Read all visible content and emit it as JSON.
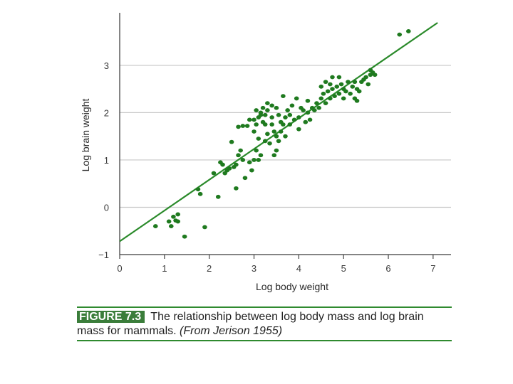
{
  "colors": {
    "points": "#1f7a1f",
    "line": "#2a8a2a",
    "gridline": "#c8c8c8",
    "axis": "#444444",
    "caption_rule": "#2f8a2f",
    "figure_label_bg": "#3a7d3a"
  },
  "chart_data": {
    "type": "scatter",
    "title": "",
    "xlabel": "Log body weight",
    "ylabel": "Log brain weight",
    "xlim": [
      0,
      7.4
    ],
    "ylim": [
      -1,
      4.05
    ],
    "x_ticks": [
      "0",
      "1",
      "2",
      "3",
      "4",
      "5",
      "6",
      "7"
    ],
    "y_ticks": [
      "−1",
      "0",
      "1",
      "2",
      "3"
    ],
    "grid": "horizontal",
    "fit_line": {
      "x": [
        0,
        7.1
      ],
      "y": [
        -0.72,
        3.9
      ]
    },
    "points": [
      [
        0.8,
        -0.4
      ],
      [
        1.1,
        -0.3
      ],
      [
        1.15,
        -0.4
      ],
      [
        1.2,
        -0.2
      ],
      [
        1.25,
        -0.28
      ],
      [
        1.3,
        -0.15
      ],
      [
        1.3,
        -0.3
      ],
      [
        1.45,
        -0.62
      ],
      [
        1.9,
        -0.42
      ],
      [
        1.75,
        0.38
      ],
      [
        1.8,
        0.28
      ],
      [
        2.2,
        0.22
      ],
      [
        2.1,
        0.72
      ],
      [
        2.25,
        0.95
      ],
      [
        2.3,
        0.9
      ],
      [
        2.35,
        0.72
      ],
      [
        2.4,
        0.78
      ],
      [
        2.45,
        0.82
      ],
      [
        2.5,
        1.38
      ],
      [
        2.55,
        0.85
      ],
      [
        2.6,
        0.4
      ],
      [
        2.6,
        0.9
      ],
      [
        2.65,
        1.1
      ],
      [
        2.65,
        1.7
      ],
      [
        2.7,
        1.2
      ],
      [
        2.75,
        1.72
      ],
      [
        2.75,
        1.0
      ],
      [
        2.8,
        0.62
      ],
      [
        2.85,
        1.72
      ],
      [
        2.9,
        1.85
      ],
      [
        2.9,
        0.95
      ],
      [
        2.95,
        0.78
      ],
      [
        3.0,
        1.6
      ],
      [
        3.0,
        1.85
      ],
      [
        3.0,
        1.0
      ],
      [
        3.05,
        1.75
      ],
      [
        3.05,
        1.2
      ],
      [
        3.05,
        2.05
      ],
      [
        3.1,
        1.9
      ],
      [
        3.1,
        1.45
      ],
      [
        3.1,
        1.0
      ],
      [
        3.15,
        1.95
      ],
      [
        3.15,
        2.0
      ],
      [
        3.15,
        1.1
      ],
      [
        3.2,
        1.8
      ],
      [
        3.2,
        2.1
      ],
      [
        3.25,
        1.75
      ],
      [
        3.25,
        1.95
      ],
      [
        3.25,
        1.4
      ],
      [
        3.3,
        2.2
      ],
      [
        3.3,
        1.55
      ],
      [
        3.3,
        2.05
      ],
      [
        3.35,
        1.35
      ],
      [
        3.4,
        1.9
      ],
      [
        3.4,
        2.15
      ],
      [
        3.4,
        1.75
      ],
      [
        3.45,
        1.6
      ],
      [
        3.45,
        1.1
      ],
      [
        3.5,
        2.1
      ],
      [
        3.5,
        1.5
      ],
      [
        3.5,
        1.2
      ],
      [
        3.55,
        1.95
      ],
      [
        3.55,
        1.4
      ],
      [
        3.6,
        1.8
      ],
      [
        3.6,
        1.6
      ],
      [
        3.65,
        1.75
      ],
      [
        3.65,
        2.35
      ],
      [
        3.7,
        1.9
      ],
      [
        3.7,
        1.5
      ],
      [
        3.75,
        2.05
      ],
      [
        3.8,
        1.95
      ],
      [
        3.8,
        1.75
      ],
      [
        3.85,
        2.15
      ],
      [
        3.9,
        1.85
      ],
      [
        3.95,
        2.3
      ],
      [
        4.0,
        1.9
      ],
      [
        4.0,
        1.65
      ],
      [
        4.05,
        2.1
      ],
      [
        4.1,
        2.05
      ],
      [
        4.15,
        1.8
      ],
      [
        4.2,
        2.25
      ],
      [
        4.2,
        2.0
      ],
      [
        4.25,
        1.85
      ],
      [
        4.3,
        2.1
      ],
      [
        4.35,
        2.05
      ],
      [
        4.4,
        2.2
      ],
      [
        4.45,
        2.1
      ],
      [
        4.5,
        2.3
      ],
      [
        4.5,
        2.55
      ],
      [
        4.55,
        2.4
      ],
      [
        4.6,
        2.2
      ],
      [
        4.6,
        2.65
      ],
      [
        4.65,
        2.45
      ],
      [
        4.7,
        2.3
      ],
      [
        4.7,
        2.6
      ],
      [
        4.75,
        2.75
      ],
      [
        4.75,
        2.5
      ],
      [
        4.8,
        2.35
      ],
      [
        4.85,
        2.55
      ],
      [
        4.9,
        2.75
      ],
      [
        4.9,
        2.4
      ],
      [
        4.95,
        2.6
      ],
      [
        5.0,
        2.3
      ],
      [
        5.0,
        2.5
      ],
      [
        5.05,
        2.45
      ],
      [
        5.1,
        2.65
      ],
      [
        5.15,
        2.4
      ],
      [
        5.2,
        2.55
      ],
      [
        5.25,
        2.3
      ],
      [
        5.3,
        2.5
      ],
      [
        5.35,
        2.45
      ],
      [
        5.4,
        2.65
      ],
      [
        5.45,
        2.7
      ],
      [
        5.5,
        2.75
      ],
      [
        5.55,
        2.6
      ],
      [
        5.6,
        2.8
      ],
      [
        5.6,
        2.9
      ],
      [
        5.65,
        2.85
      ],
      [
        5.7,
        2.8
      ],
      [
        5.3,
        2.25
      ],
      [
        5.25,
        2.65
      ],
      [
        6.25,
        3.65
      ],
      [
        6.45,
        3.72
      ]
    ]
  },
  "caption": {
    "figure_label": "FIGURE 7.3",
    "text": "The relationship between log body mass and log brain mass for mammals.",
    "source": "(From Jerison 1955)"
  }
}
